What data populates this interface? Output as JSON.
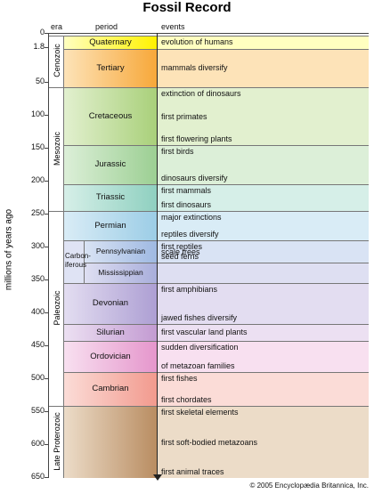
{
  "title": "Fossil Record",
  "header": {
    "era": "era",
    "period": "period",
    "events": "events"
  },
  "axis_label": "millions of years ago",
  "ticks": [
    "0",
    "1.8",
    "50",
    "100",
    "150",
    "200",
    "250",
    "300",
    "350",
    "400",
    "450",
    "500",
    "550",
    "600",
    "650"
  ],
  "eras": [
    {
      "name": "Cenozoic"
    },
    {
      "name": "Mesozoic"
    },
    {
      "name": "Paleozoic"
    },
    {
      "name": "Late Proterozoic"
    }
  ],
  "carboniferous": [
    "Carbon-",
    "iferous"
  ],
  "periods": [
    {
      "name": "Quaternary",
      "events": [
        "evolution of humans"
      ]
    },
    {
      "name": "Tertiary",
      "events": [
        "mammals diversify"
      ]
    },
    {
      "name": "Cretaceous",
      "events": [
        "extinction of dinosaurs",
        "first primates",
        "first flowering plants"
      ]
    },
    {
      "name": "Jurassic",
      "events": [
        "first birds",
        "dinosaurs diversify"
      ]
    },
    {
      "name": "Triassic",
      "events": [
        "first mammals",
        "first dinosaurs"
      ]
    },
    {
      "name": "Permian",
      "events": [
        "major extinctions",
        "reptiles diversify"
      ]
    },
    {
      "name": "Pennsylvanian",
      "events": [
        "first reptiles",
        "scale trees",
        "seed ferns"
      ]
    },
    {
      "name": "Mississippian",
      "events": []
    },
    {
      "name": "Devonian",
      "events": [
        "first amphibians",
        "jawed fishes diversify"
      ]
    },
    {
      "name": "Silurian",
      "events": [
        "first vascular land plants"
      ]
    },
    {
      "name": "Ordovician",
      "events": [
        "sudden diversification",
        "of metazoan families"
      ]
    },
    {
      "name": "Cambrian",
      "events": [
        "first fishes",
        "first chordates"
      ]
    },
    {
      "name": "",
      "events": [
        "first skeletal elements",
        "first soft-bodied metazoans",
        "first animal traces"
      ]
    }
  ],
  "footer": "© 2005 Encyclopædia Britannica, Inc."
}
